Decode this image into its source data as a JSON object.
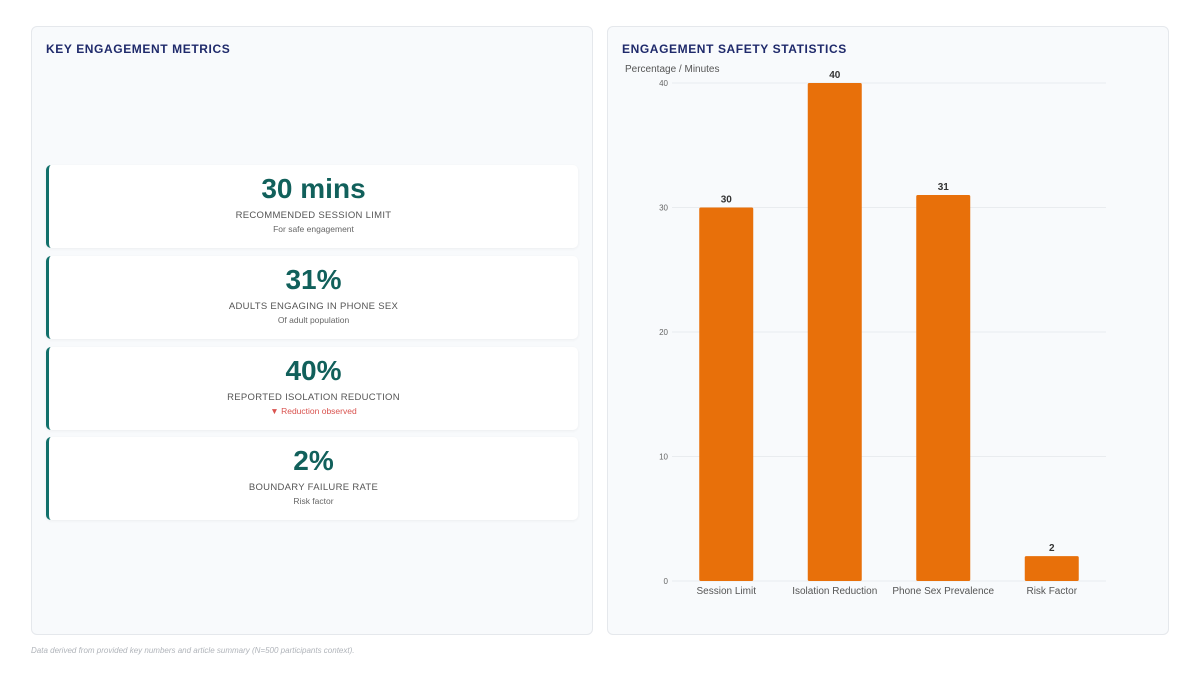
{
  "metrics_panel": {
    "title": "KEY ENGAGEMENT METRICS",
    "cards": [
      {
        "value": "30 mins",
        "label": "RECOMMENDED SESSION LIMIT",
        "sub": "For safe engagement",
        "sub_arrow": ""
      },
      {
        "value": "31%",
        "label": "ADULTS ENGAGING IN PHONE SEX",
        "sub": "Of adult population",
        "sub_arrow": ""
      },
      {
        "value": "40%",
        "label": "REPORTED ISOLATION REDUCTION",
        "sub": "Reduction observed",
        "sub_arrow": "▼"
      },
      {
        "value": "2%",
        "label": "BOUNDARY FAILURE RATE",
        "sub": "Risk factor",
        "sub_arrow": ""
      }
    ]
  },
  "chart_panel": {
    "title": "ENGAGEMENT SAFETY STATISTICS"
  },
  "chart_data": {
    "type": "bar",
    "title": "ENGAGEMENT SAFETY STATISTICS",
    "ylabel": "Percentage / Minutes",
    "xlabel": "",
    "categories": [
      "Session Limit",
      "Isolation Reduction",
      "Phone Sex Prevalence",
      "Risk Factor"
    ],
    "values": [
      30,
      40,
      31,
      2
    ],
    "ylim": [
      0,
      40
    ],
    "yticks": [
      0,
      10,
      20,
      30,
      40
    ],
    "grid": true,
    "legend": "none",
    "bar_color": "#e8700a"
  },
  "colors": {
    "accent_teal": "#11605b",
    "title_navy": "#1f2a6b",
    "bar_orange": "#e8700a",
    "negative_red": "#d9534f"
  },
  "footnote": "Data derived from provided key numbers and article summary (N=500 participants context)."
}
